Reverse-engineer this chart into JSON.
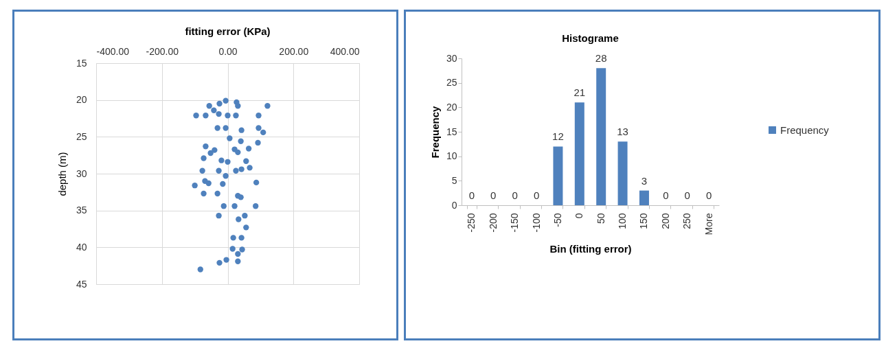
{
  "chart_data": [
    {
      "type": "scatter",
      "title": "fitting error (KPa)",
      "ylabel": "depth (m)",
      "xlim": [
        -400,
        400
      ],
      "xticks": [
        {
          "value": -400,
          "label": "-400.00"
        },
        {
          "value": -200,
          "label": "-200.00"
        },
        {
          "value": 0,
          "label": "0.00"
        },
        {
          "value": 200,
          "label": "200.00"
        },
        {
          "value": 400,
          "label": "400.00"
        }
      ],
      "ylim": [
        45,
        15
      ],
      "yticks": [
        15,
        20,
        25,
        30,
        35,
        40,
        45
      ],
      "grid": true,
      "marker": "circle",
      "series": [
        {
          "color": "#4f81bd",
          "x": [
            -56,
            -25,
            -6,
            27,
            31,
            121,
            -96,
            -67,
            -42,
            -27,
            0,
            25,
            94,
            -31,
            -6,
            42,
            94,
            108,
            6,
            40,
            92,
            -67,
            -40,
            -52,
            21,
            31,
            64,
            -73,
            -19,
            0,
            56,
            67,
            42,
            25,
            -27,
            -77,
            -6,
            -69,
            -58,
            -100,
            -15,
            87,
            -73,
            -31,
            31,
            40,
            -12,
            21,
            85,
            -27,
            52,
            33,
            56,
            17,
            42,
            15,
            31,
            44,
            -4,
            31,
            -25,
            -83
          ],
          "values": [
            20.8,
            20.5,
            20.1,
            20.3,
            20.8,
            20.8,
            22.1,
            22.1,
            21.4,
            21.9,
            22.1,
            22.1,
            22.1,
            23.8,
            23.8,
            24.1,
            23.8,
            24.4,
            25.2,
            25.6,
            25.8,
            26.3,
            26.8,
            27.2,
            26.7,
            27.1,
            26.6,
            27.9,
            28.2,
            28.4,
            28.3,
            29.2,
            29.4,
            29.6,
            29.6,
            29.6,
            30.3,
            31.0,
            31.3,
            31.6,
            31.4,
            31.2,
            32.7,
            32.7,
            33.0,
            33.2,
            34.4,
            34.4,
            34.4,
            35.7,
            35.7,
            36.2,
            37.3,
            38.7,
            38.7,
            40.2,
            40.9,
            40.3,
            41.7,
            41.9,
            42.1,
            43.0
          ]
        }
      ]
    },
    {
      "type": "bar",
      "title": "Histograme",
      "xlabel": "Bin (fitting error)",
      "ylabel": "Frequency",
      "categories": [
        "-250",
        "-200",
        "-150",
        "-100",
        "-50",
        "0",
        "50",
        "100",
        "150",
        "200",
        "250",
        "More"
      ],
      "ylim": [
        0,
        30
      ],
      "yticks": [
        0,
        5,
        10,
        15,
        20,
        25,
        30
      ],
      "grid": false,
      "data_labels": true,
      "legend": "right",
      "series": [
        {
          "name": "Frequency",
          "color": "#4f81bd",
          "values": [
            0,
            0,
            0,
            0,
            12,
            21,
            28,
            13,
            3,
            0,
            0,
            0
          ]
        }
      ]
    }
  ]
}
